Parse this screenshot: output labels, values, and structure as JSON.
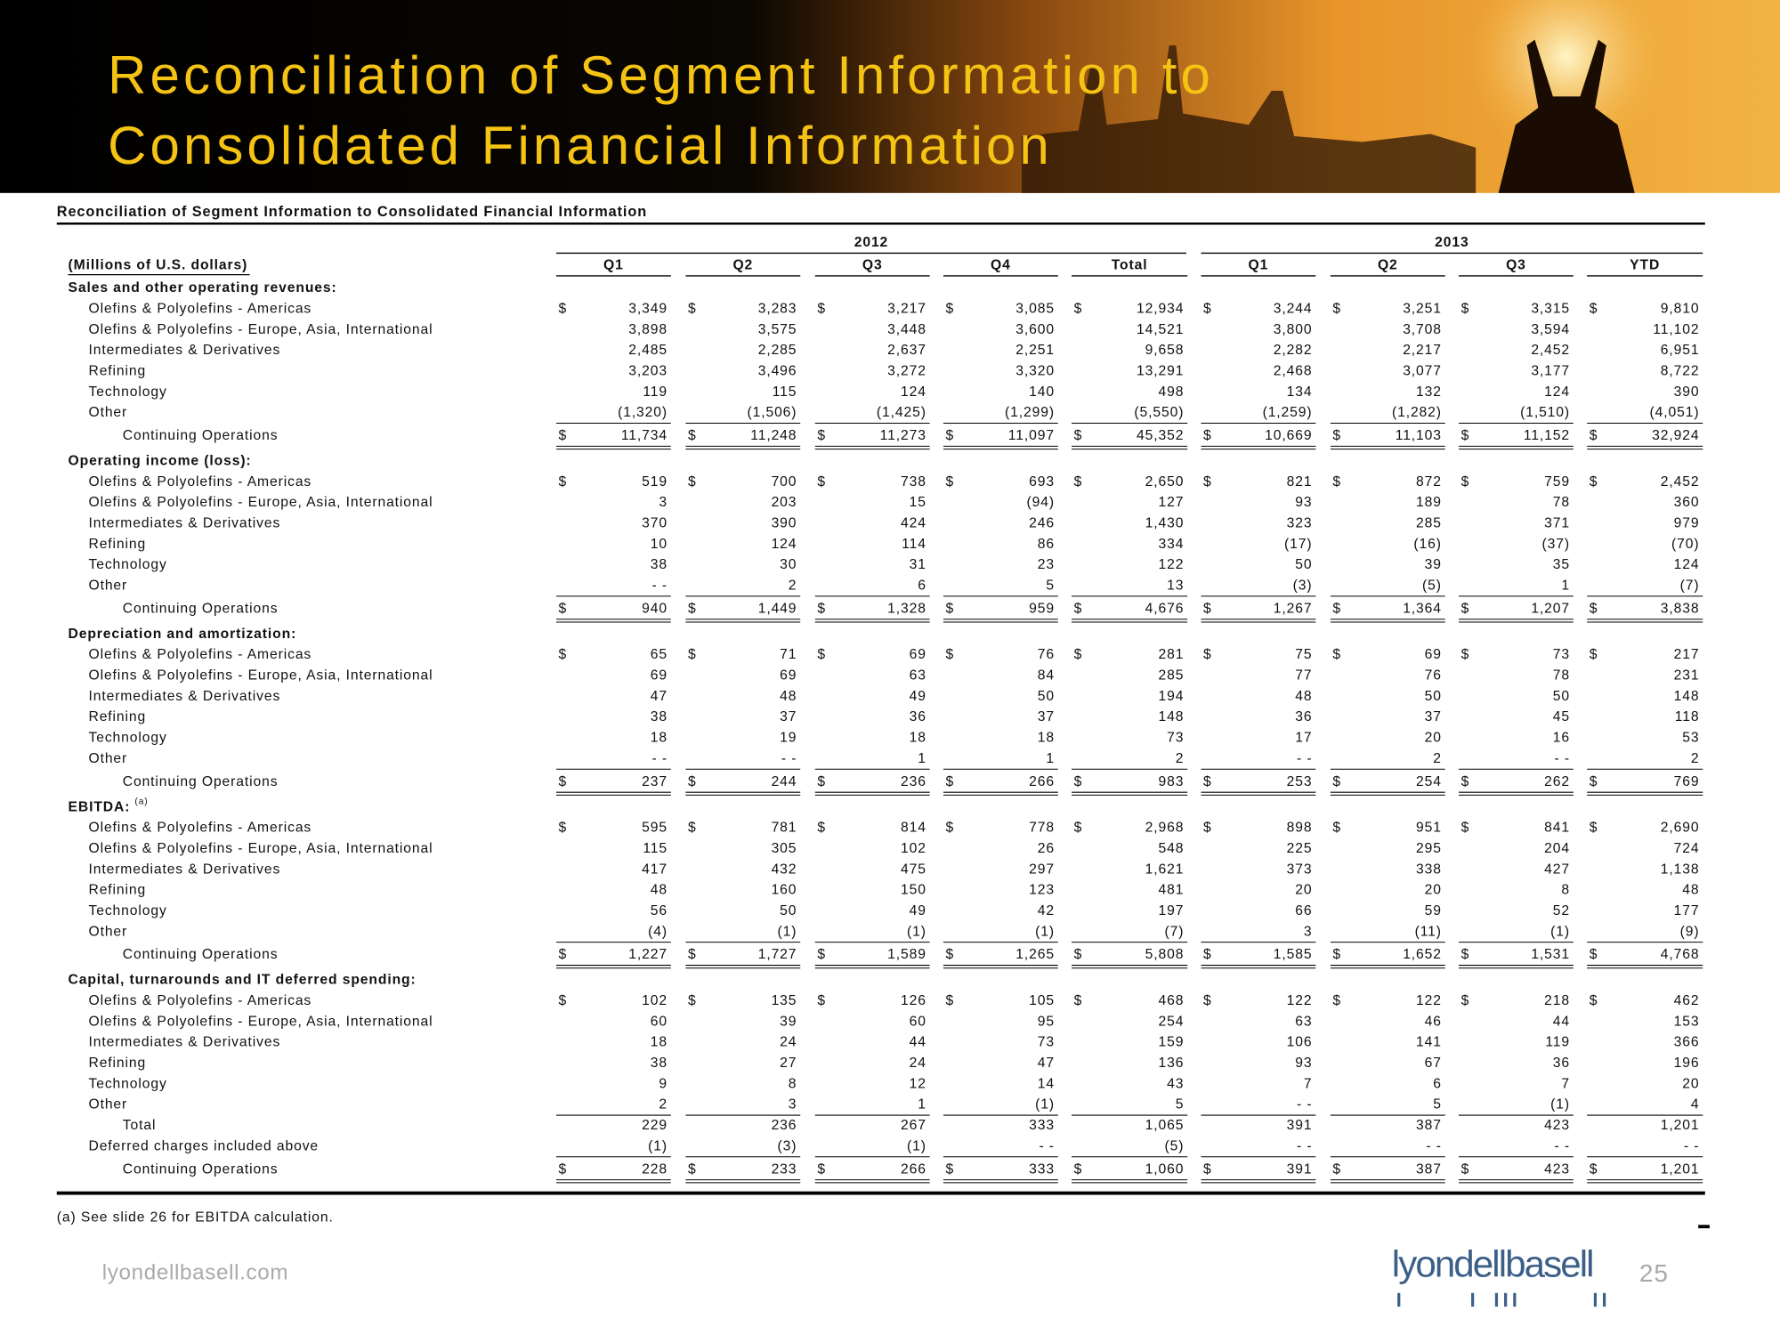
{
  "header": {
    "title_line1": "Reconciliation of Segment Information to",
    "title_line2": "Consolidated Financial Information"
  },
  "table": {
    "title": "Reconciliation of Segment Information to Consolidated Financial Information",
    "units": "(Millions of U.S. dollars)",
    "years": [
      "2012",
      "2013"
    ],
    "columns": [
      "Q1",
      "Q2",
      "Q3",
      "Q4",
      "Total",
      "Q1",
      "Q2",
      "Q3",
      "YTD"
    ],
    "currency": "$",
    "sections": [
      {
        "heading": "Sales and other operating revenues:",
        "rows": [
          {
            "label": "Olefins & Polyolefins - Americas",
            "values": [
              "3,349",
              "3,283",
              "3,217",
              "3,085",
              "12,934",
              "3,244",
              "3,251",
              "3,315",
              "9,810"
            ]
          },
          {
            "label": "Olefins & Polyolefins - Europe, Asia, International",
            "values": [
              "3,898",
              "3,575",
              "3,448",
              "3,600",
              "14,521",
              "3,800",
              "3,708",
              "3,594",
              "11,102"
            ]
          },
          {
            "label": "Intermediates & Derivatives",
            "values": [
              "2,485",
              "2,285",
              "2,637",
              "2,251",
              "9,658",
              "2,282",
              "2,217",
              "2,452",
              "6,951"
            ]
          },
          {
            "label": "Refining",
            "values": [
              "3,203",
              "3,496",
              "3,272",
              "3,320",
              "13,291",
              "2,468",
              "3,077",
              "3,177",
              "8,722"
            ]
          },
          {
            "label": "Technology",
            "values": [
              "119",
              "115",
              "124",
              "140",
              "498",
              "134",
              "132",
              "124",
              "390"
            ]
          },
          {
            "label": "Other",
            "values": [
              "(1,320)",
              "(1,506)",
              "(1,425)",
              "(1,299)",
              "(5,550)",
              "(1,259)",
              "(1,282)",
              "(1,510)",
              "(4,051)"
            ]
          },
          {
            "label": "Continuing Operations",
            "values": [
              "11,734",
              "11,248",
              "11,273",
              "11,097",
              "45,352",
              "10,669",
              "11,103",
              "11,152",
              "32,924"
            ]
          }
        ]
      },
      {
        "heading": "Operating income (loss):",
        "rows": [
          {
            "label": "Olefins & Polyolefins - Americas",
            "values": [
              "519",
              "700",
              "738",
              "693",
              "2,650",
              "821",
              "872",
              "759",
              "2,452"
            ]
          },
          {
            "label": "Olefins & Polyolefins - Europe, Asia, International",
            "values": [
              "3",
              "203",
              "15",
              "(94)",
              "127",
              "93",
              "189",
              "78",
              "360"
            ]
          },
          {
            "label": "Intermediates & Derivatives",
            "values": [
              "370",
              "390",
              "424",
              "246",
              "1,430",
              "323",
              "285",
              "371",
              "979"
            ]
          },
          {
            "label": "Refining",
            "values": [
              "10",
              "124",
              "114",
              "86",
              "334",
              "(17)",
              "(16)",
              "(37)",
              "(70)"
            ]
          },
          {
            "label": "Technology",
            "values": [
              "38",
              "30",
              "31",
              "23",
              "122",
              "50",
              "39",
              "35",
              "124"
            ]
          },
          {
            "label": "Other",
            "values": [
              "- -",
              "2",
              "6",
              "5",
              "13",
              "(3)",
              "(5)",
              "1",
              "(7)"
            ]
          },
          {
            "label": "Continuing Operations",
            "values": [
              "940",
              "1,449",
              "1,328",
              "959",
              "4,676",
              "1,267",
              "1,364",
              "1,207",
              "3,838"
            ]
          }
        ]
      },
      {
        "heading": "Depreciation and amortization:",
        "rows": [
          {
            "label": "Olefins & Polyolefins - Americas",
            "values": [
              "65",
              "71",
              "69",
              "76",
              "281",
              "75",
              "69",
              "73",
              "217"
            ]
          },
          {
            "label": "Olefins & Polyolefins - Europe, Asia, International",
            "values": [
              "69",
              "69",
              "63",
              "84",
              "285",
              "77",
              "76",
              "78",
              "231"
            ]
          },
          {
            "label": "Intermediates & Derivatives",
            "values": [
              "47",
              "48",
              "49",
              "50",
              "194",
              "48",
              "50",
              "50",
              "148"
            ]
          },
          {
            "label": "Refining",
            "values": [
              "38",
              "37",
              "36",
              "37",
              "148",
              "36",
              "37",
              "45",
              "118"
            ]
          },
          {
            "label": "Technology",
            "values": [
              "18",
              "19",
              "18",
              "18",
              "73",
              "17",
              "20",
              "16",
              "53"
            ]
          },
          {
            "label": "Other",
            "values": [
              "- -",
              "- -",
              "1",
              "1",
              "2",
              "- -",
              "2",
              "- -",
              "2"
            ]
          },
          {
            "label": "Continuing Operations",
            "values": [
              "237",
              "244",
              "236",
              "266",
              "983",
              "253",
              "254",
              "262",
              "769"
            ]
          }
        ]
      },
      {
        "heading": "EBITDA:",
        "heading_note": "(a)",
        "rows": [
          {
            "label": "Olefins & Polyolefins - Americas",
            "values": [
              "595",
              "781",
              "814",
              "778",
              "2,968",
              "898",
              "951",
              "841",
              "2,690"
            ]
          },
          {
            "label": "Olefins & Polyolefins - Europe, Asia, International",
            "values": [
              "115",
              "305",
              "102",
              "26",
              "548",
              "225",
              "295",
              "204",
              "724"
            ]
          },
          {
            "label": "Intermediates & Derivatives",
            "values": [
              "417",
              "432",
              "475",
              "297",
              "1,621",
              "373",
              "338",
              "427",
              "1,138"
            ]
          },
          {
            "label": "Refining",
            "values": [
              "48",
              "160",
              "150",
              "123",
              "481",
              "20",
              "20",
              "8",
              "48"
            ]
          },
          {
            "label": "Technology",
            "values": [
              "56",
              "50",
              "49",
              "42",
              "197",
              "66",
              "59",
              "52",
              "177"
            ]
          },
          {
            "label": "Other",
            "values": [
              "(4)",
              "(1)",
              "(1)",
              "(1)",
              "(7)",
              "3",
              "(11)",
              "(1)",
              "(9)"
            ]
          },
          {
            "label": "Continuing Operations",
            "values": [
              "1,227",
              "1,727",
              "1,589",
              "1,265",
              "5,808",
              "1,585",
              "1,652",
              "1,531",
              "4,768"
            ]
          }
        ]
      },
      {
        "heading": "Capital, turnarounds and IT deferred spending:",
        "rows": [
          {
            "label": "Olefins & Polyolefins - Americas",
            "values": [
              "102",
              "135",
              "126",
              "105",
              "468",
              "122",
              "122",
              "218",
              "462"
            ]
          },
          {
            "label": "Olefins & Polyolefins - Europe, Asia, International",
            "values": [
              "60",
              "39",
              "60",
              "95",
              "254",
              "63",
              "46",
              "44",
              "153"
            ]
          },
          {
            "label": "Intermediates & Derivatives",
            "values": [
              "18",
              "24",
              "44",
              "73",
              "159",
              "106",
              "141",
              "119",
              "366"
            ]
          },
          {
            "label": "Refining",
            "values": [
              "38",
              "27",
              "24",
              "47",
              "136",
              "93",
              "67",
              "36",
              "196"
            ]
          },
          {
            "label": "Technology",
            "values": [
              "9",
              "8",
              "12",
              "14",
              "43",
              "7",
              "6",
              "7",
              "20"
            ]
          },
          {
            "label": "Other",
            "values": [
              "2",
              "3",
              "1",
              "(1)",
              "5",
              "- -",
              "5",
              "(1)",
              "4"
            ]
          },
          {
            "label": "Total",
            "values": [
              "229",
              "236",
              "267",
              "333",
              "1,065",
              "391",
              "387",
              "423",
              "1,201"
            ]
          },
          {
            "label": "Deferred charges included above",
            "values": [
              "(1)",
              "(3)",
              "(1)",
              "- -",
              "(5)",
              "- -",
              "- -",
              "- -",
              "- -"
            ]
          },
          {
            "label": "Continuing Operations",
            "values": [
              "228",
              "233",
              "266",
              "333",
              "1,060",
              "391",
              "387",
              "423",
              "1,201"
            ]
          }
        ]
      }
    ]
  },
  "footnote": "(a) See slide 26 for EBITDA calculation.",
  "footer": {
    "url": "lyondellbasell.com",
    "logo": "lyondellbasell",
    "page": "25"
  }
}
